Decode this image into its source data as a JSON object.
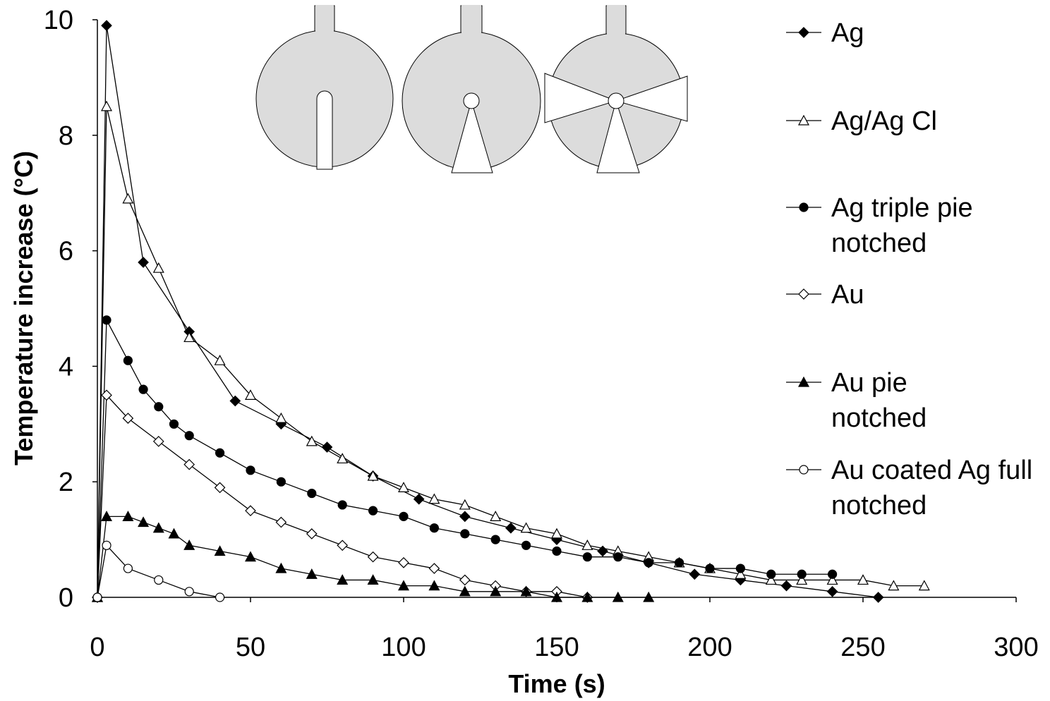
{
  "chart_data": {
    "type": "line",
    "xlabel": "Time (s)",
    "ylabel": "Temperature increase (°C)",
    "xlim": [
      0,
      300
    ],
    "ylim": [
      0,
      10
    ],
    "xticks": [
      0,
      50,
      100,
      150,
      200,
      250,
      300
    ],
    "yticks": [
      0,
      2,
      4,
      6,
      8,
      10
    ],
    "series": [
      {
        "name": "Ag",
        "color": "#000000",
        "marker": "diamond",
        "filled": true,
        "x": [
          0,
          3,
          15,
          30,
          45,
          60,
          75,
          90,
          105,
          120,
          135,
          150,
          165,
          180,
          195,
          210,
          225,
          240,
          255
        ],
        "values": [
          0,
          9.9,
          5.8,
          4.6,
          3.4,
          3.0,
          2.6,
          2.1,
          1.7,
          1.4,
          1.2,
          1.0,
          0.8,
          0.6,
          0.4,
          0.3,
          0.2,
          0.1,
          0
        ]
      },
      {
        "name": "Ag/Ag Cl",
        "color": "#000000",
        "marker": "triangle",
        "filled": false,
        "x": [
          0,
          3,
          10,
          20,
          30,
          40,
          50,
          60,
          70,
          80,
          90,
          100,
          110,
          120,
          130,
          140,
          150,
          160,
          170,
          180,
          190,
          200,
          210,
          220,
          230,
          240,
          250,
          260,
          270
        ],
        "values": [
          0,
          8.5,
          6.9,
          5.7,
          4.5,
          4.1,
          3.5,
          3.1,
          2.7,
          2.4,
          2.1,
          1.9,
          1.7,
          1.6,
          1.4,
          1.2,
          1.1,
          0.9,
          0.8,
          0.7,
          0.6,
          0.5,
          0.4,
          0.3,
          0.3,
          0.3,
          0.3,
          0.2,
          0.2
        ]
      },
      {
        "name": "Ag triple pie notched",
        "color": "#000000",
        "marker": "circle",
        "filled": true,
        "x": [
          0,
          3,
          10,
          15,
          20,
          25,
          30,
          40,
          50,
          60,
          70,
          80,
          90,
          100,
          110,
          120,
          130,
          140,
          150,
          160,
          170,
          180,
          190,
          200,
          210,
          220,
          230,
          240
        ],
        "values": [
          0,
          4.8,
          4.1,
          3.6,
          3.3,
          3.0,
          2.8,
          2.5,
          2.2,
          2.0,
          1.8,
          1.6,
          1.5,
          1.4,
          1.2,
          1.1,
          1.0,
          0.9,
          0.8,
          0.7,
          0.7,
          0.6,
          0.6,
          0.5,
          0.5,
          0.4,
          0.4,
          0.4
        ]
      },
      {
        "name": "Au",
        "color": "#000000",
        "marker": "diamond",
        "filled": false,
        "x": [
          0,
          3,
          10,
          20,
          30,
          40,
          50,
          60,
          70,
          80,
          90,
          100,
          110,
          120,
          130,
          140,
          150,
          160
        ],
        "values": [
          0,
          3.5,
          3.1,
          2.7,
          2.3,
          1.9,
          1.5,
          1.3,
          1.1,
          0.9,
          0.7,
          0.6,
          0.5,
          0.3,
          0.2,
          0.1,
          0.1,
          0
        ]
      },
      {
        "name": "Au pie notched",
        "color": "#000000",
        "marker": "triangle",
        "filled": true,
        "x": [
          0,
          3,
          10,
          15,
          20,
          25,
          30,
          40,
          50,
          60,
          70,
          80,
          90,
          100,
          110,
          120,
          130,
          140,
          150,
          160,
          170,
          180
        ],
        "values": [
          0,
          1.4,
          1.4,
          1.3,
          1.2,
          1.1,
          0.9,
          0.8,
          0.7,
          0.5,
          0.4,
          0.3,
          0.3,
          0.2,
          0.2,
          0.1,
          0.1,
          0.1,
          0,
          0,
          0,
          0
        ]
      },
      {
        "name": "Au coated Ag full notched",
        "color": "#000000",
        "marker": "circle",
        "filled": false,
        "x": [
          0,
          3,
          10,
          20,
          30,
          40
        ],
        "values": [
          0,
          0.9,
          0.5,
          0.3,
          0.1,
          0
        ]
      }
    ]
  }
}
